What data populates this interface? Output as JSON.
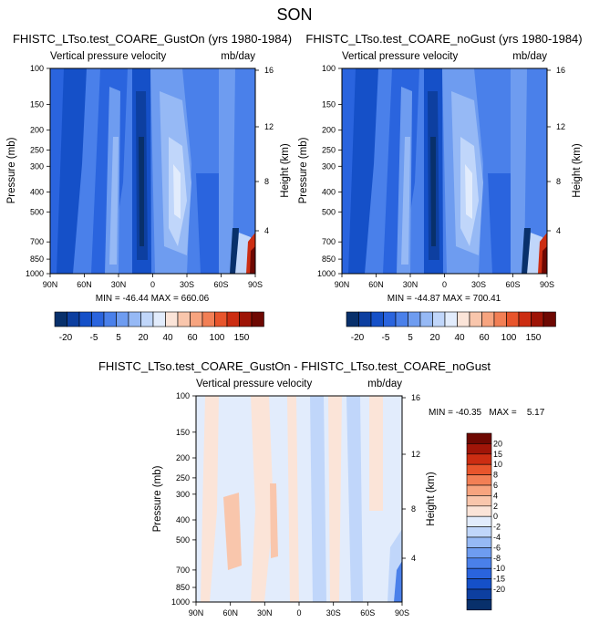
{
  "page": {
    "season": "SON",
    "variable": "Vertical pressure velocity",
    "units": "mb/day"
  },
  "chart_data": [
    {
      "type": "heatmap",
      "title": "FHISTC_LTso.test_COARE_GustOn (yrs 1980-1984)",
      "subtitle": "Vertical pressure velocity",
      "units": "mb/day",
      "xlabel": "",
      "ylabel": "Pressure (mb)",
      "y2label": "Height (km)",
      "x_ticks": [
        "90N",
        "60N",
        "30N",
        "0",
        "30S",
        "60S",
        "90S"
      ],
      "x_values": [
        90,
        60,
        30,
        0,
        -30,
        -60,
        -90
      ],
      "y_ticks": [
        "100",
        "150",
        "200",
        "250",
        "300",
        "400",
        "500",
        "700",
        "850",
        "1000"
      ],
      "y_values": [
        100,
        150,
        200,
        250,
        300,
        400,
        500,
        700,
        850,
        1000
      ],
      "ylim": [
        1000,
        100
      ],
      "y2_ticks": [
        "4",
        "8",
        "12",
        "16"
      ],
      "y2_values": [
        4,
        8,
        12,
        16
      ],
      "stats_text": "MIN = -46.44   MAX = 660.06",
      "min": -46.44,
      "max": 660.06,
      "colorbar_labels": [
        "-20",
        "-5",
        "5",
        "20",
        "40",
        "60",
        "100",
        "150"
      ],
      "colorbar_position": "bottom"
    },
    {
      "type": "heatmap",
      "title": "FHISTC_LTso.test_COARE_noGust (yrs 1980-1984)",
      "subtitle": "Vertical pressure velocity",
      "units": "mb/day",
      "xlabel": "",
      "ylabel": "Pressure (mb)",
      "y2label": "Height (km)",
      "x_ticks": [
        "90N",
        "60N",
        "30N",
        "0",
        "30S",
        "60S",
        "90S"
      ],
      "x_values": [
        90,
        60,
        30,
        0,
        -30,
        -60,
        -90
      ],
      "y_ticks": [
        "100",
        "150",
        "200",
        "250",
        "300",
        "400",
        "500",
        "700",
        "850",
        "1000"
      ],
      "y_values": [
        100,
        150,
        200,
        250,
        300,
        400,
        500,
        700,
        850,
        1000
      ],
      "ylim": [
        1000,
        100
      ],
      "y2_ticks": [
        "4",
        "8",
        "12",
        "16"
      ],
      "y2_values": [
        4,
        8,
        12,
        16
      ],
      "stats_text": "MIN = -44.87   MAX = 700.41",
      "min": -44.87,
      "max": 700.41,
      "colorbar_labels": [
        "-20",
        "-5",
        "5",
        "20",
        "40",
        "60",
        "100",
        "150"
      ],
      "colorbar_position": "bottom"
    },
    {
      "type": "heatmap",
      "title": "FHISTC_LTso.test_COARE_GustOn - FHISTC_LTso.test_COARE_noGust",
      "subtitle": "Vertical pressure velocity",
      "units": "mb/day",
      "xlabel": "",
      "ylabel": "Pressure (mb)",
      "y2label": "Height (km)",
      "x_ticks": [
        "90N",
        "60N",
        "30N",
        "0",
        "30S",
        "60S",
        "90S"
      ],
      "x_values": [
        90,
        60,
        30,
        0,
        -30,
        -60,
        -90
      ],
      "y_ticks": [
        "100",
        "150",
        "200",
        "250",
        "300",
        "400",
        "500",
        "700",
        "850",
        "1000"
      ],
      "y_values": [
        100,
        150,
        200,
        250,
        300,
        400,
        500,
        700,
        850,
        1000
      ],
      "ylim": [
        1000,
        100
      ],
      "y2_ticks": [
        "4",
        "8",
        "12",
        "16"
      ],
      "y2_values": [
        4,
        8,
        12,
        16
      ],
      "stats_text": "MIN = -40.35   MAX =    5.17",
      "min": -40.35,
      "max": 5.17,
      "colorbar_labels": [
        "20",
        "15",
        "10",
        "8",
        "6",
        "4",
        "2",
        "0",
        "-2",
        "-4",
        "-6",
        "-8",
        "-10",
        "-15",
        "-20"
      ],
      "colorbar_position": "right"
    }
  ],
  "colors": {
    "ab": [
      "#08306b",
      "#0d3fa0",
      "#1550c8",
      "#2a64de",
      "#4a80ea",
      "#6e9cf0",
      "#96b9f5",
      "#c0d6fa",
      "#e2ecfc",
      "#fbe4d8",
      "#f9c6ac",
      "#f7a47f",
      "#f27f55",
      "#e8552c",
      "#cc2d12",
      "#9e1406",
      "#6e0802"
    ],
    "diff": [
      "#6e0802",
      "#a01508",
      "#cc2d12",
      "#e8552c",
      "#f27f55",
      "#f7a47f",
      "#f9c6ac",
      "#fbe4d8",
      "#e2ecfc",
      "#c0d6fa",
      "#96b9f5",
      "#6e9cf0",
      "#4a80ea",
      "#2a64de",
      "#1550c8",
      "#0d3fa0",
      "#08306b"
    ]
  }
}
